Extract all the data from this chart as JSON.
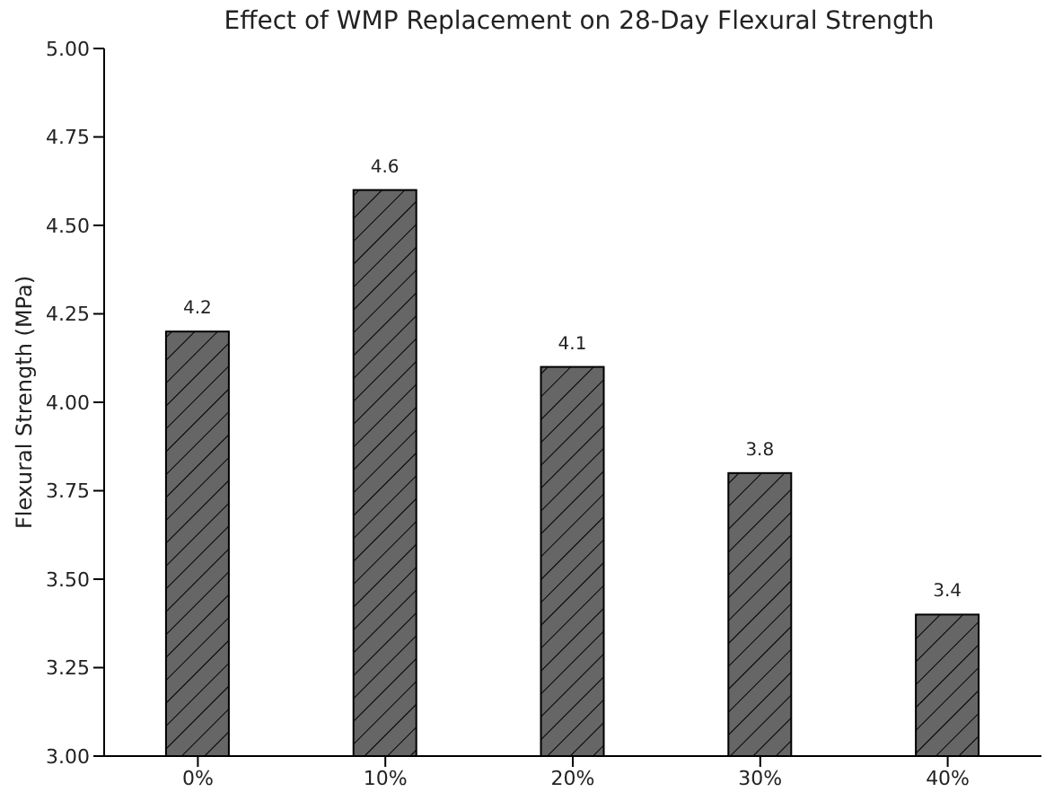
{
  "chart_data": {
    "type": "bar",
    "title": "Effect of WMP Replacement on 28-Day Flexural Strength",
    "ylabel": "Flexural Strength (MPa)",
    "categories": [
      "0%",
      "10%",
      "20%",
      "30%",
      "40%"
    ],
    "values": [
      4.2,
      4.6,
      4.1,
      3.8,
      3.4
    ],
    "color": "#666666",
    "ylim": [
      3,
      5
    ],
    "yticks": [
      {
        "value": 3,
        "label": "3.00"
      },
      {
        "value": 3.25,
        "label": "3.25"
      },
      {
        "value": 3.5,
        "label": "3.50"
      },
      {
        "value": 3.75,
        "label": "3.75"
      },
      {
        "value": 4,
        "label": "4.00"
      },
      {
        "value": 4.25,
        "label": "4.25"
      },
      {
        "value": 4.5,
        "label": "4.50"
      },
      {
        "value": 4.75,
        "label": "4.75"
      },
      {
        "value": 5,
        "label": "5.00"
      }
    ],
    "data_labels": true,
    "grid": false,
    "legend": false
  }
}
